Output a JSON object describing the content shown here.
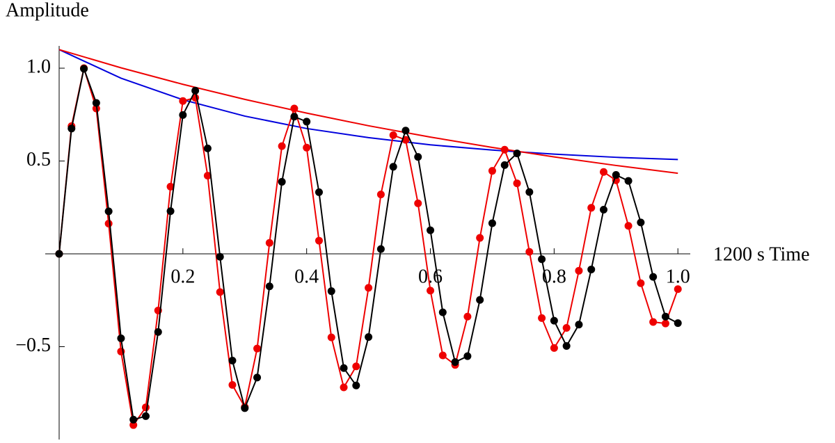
{
  "chart_data": {
    "type": "line",
    "ylabel": "Amplitude",
    "xlabel": "1200 s Time",
    "xlim": [
      0,
      1.02
    ],
    "ylim": [
      -1,
      1.12
    ],
    "xticks": [
      0.2,
      0.4,
      0.6,
      0.8,
      {
        "value": 1,
        "label": "1.0"
      }
    ],
    "yticks": [
      {
        "value": -0.5,
        "label": "−0.5"
      },
      0.5,
      {
        "value": 1,
        "label": "1.0"
      }
    ],
    "series": [
      {
        "color": "#0000dd",
        "markers": false,
        "x": [
          0,
          0.1,
          0.2,
          0.3,
          0.4,
          0.5,
          0.6,
          0.7,
          0.8,
          0.9,
          1.0
        ],
        "values": [
          1.1,
          0.946,
          0.83,
          0.742,
          0.675,
          0.626,
          0.587,
          0.559,
          0.537,
          0.52,
          0.508
        ]
      },
      {
        "color": "#ee0000",
        "markers": false,
        "x": [
          0,
          0.1,
          0.2,
          0.3,
          0.4,
          0.5,
          0.6,
          0.7,
          0.8,
          0.9,
          1.0
        ],
        "values": [
          1.1,
          1.002,
          0.913,
          0.832,
          0.758,
          0.69,
          0.629,
          0.573,
          0.522,
          0.476,
          0.434
        ]
      },
      {
        "color": "#ee0000",
        "markers": true,
        "x": [
          0,
          0.02,
          0.04,
          0.06,
          0.08,
          0.1,
          0.12,
          0.14,
          0.16,
          0.18,
          0.2,
          0.22,
          0.24,
          0.26,
          0.28,
          0.3,
          0.32,
          0.34,
          0.36,
          0.38,
          0.4,
          0.42,
          0.44,
          0.46,
          0.48,
          0.5,
          0.52,
          0.54,
          0.56,
          0.58,
          0.6,
          0.62,
          0.64,
          0.66,
          0.68,
          0.7,
          0.72,
          0.74,
          0.76,
          0.78,
          0.8,
          0.82,
          0.84,
          0.86,
          0.88,
          0.9,
          0.92,
          0.94,
          0.96,
          0.98,
          1.0
        ],
        "values": [
          0,
          0.688,
          1.0,
          0.783,
          0.163,
          -0.526,
          -0.922,
          -0.827,
          -0.305,
          0.362,
          0.823,
          0.841,
          0.421,
          -0.206,
          -0.706,
          -0.825,
          -0.51,
          0.059,
          0.58,
          0.783,
          0.572,
          0.071,
          -0.45,
          -0.719,
          -0.606,
          -0.183,
          0.32,
          0.639,
          0.614,
          0.272,
          -0.198,
          -0.547,
          -0.598,
          -0.338,
          0.086,
          0.447,
          0.561,
          0.38,
          0.011,
          -0.346,
          -0.507,
          -0.399,
          -0.091,
          0.248,
          0.441,
          0.396,
          0.151,
          -0.158,
          -0.367,
          -0.375,
          -0.19
        ]
      },
      {
        "color": "#000000",
        "markers": true,
        "x": [
          0,
          0.02,
          0.04,
          0.06,
          0.08,
          0.1,
          0.12,
          0.14,
          0.16,
          0.18,
          0.2,
          0.22,
          0.24,
          0.26,
          0.28,
          0.3,
          0.32,
          0.34,
          0.36,
          0.38,
          0.4,
          0.42,
          0.44,
          0.46,
          0.48,
          0.5,
          0.52,
          0.54,
          0.56,
          0.58,
          0.6,
          0.62,
          0.64,
          0.66,
          0.68,
          0.7,
          0.72,
          0.74,
          0.76,
          0.78,
          0.8,
          0.82,
          0.84,
          0.86,
          0.88,
          0.9,
          0.92,
          0.94,
          0.96,
          0.98,
          1.0
        ],
        "values": [
          0,
          0.675,
          0.997,
          0.813,
          0.229,
          -0.455,
          -0.893,
          -0.874,
          -0.421,
          0.23,
          0.748,
          0.879,
          0.568,
          -0.016,
          -0.575,
          -0.831,
          -0.666,
          -0.175,
          0.388,
          0.739,
          0.712,
          0.332,
          -0.201,
          -0.615,
          -0.709,
          -0.448,
          0.026,
          0.469,
          0.664,
          0.522,
          0.127,
          -0.315,
          -0.583,
          -0.551,
          -0.248,
          0.165,
          0.478,
          0.541,
          0.333,
          -0.029,
          -0.36,
          -0.496,
          -0.381,
          -0.084,
          0.238,
          0.425,
          0.393,
          0.169,
          -0.124,
          -0.338,
          -0.373
        ]
      }
    ]
  }
}
